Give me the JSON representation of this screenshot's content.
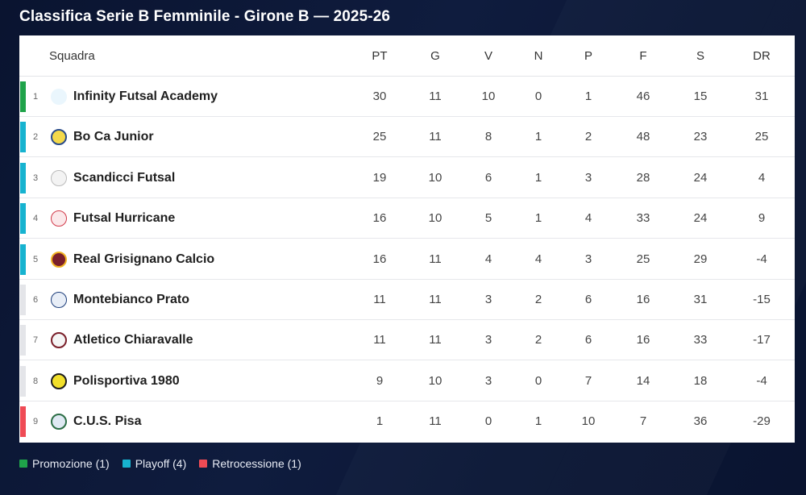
{
  "title": "Classifica Serie B Femminile - Girone B — 2025-26",
  "headers": {
    "team": "Squadra",
    "pt": "PT",
    "g": "G",
    "v": "V",
    "n": "N",
    "p": "P",
    "f": "F",
    "s": "S",
    "dr": "DR"
  },
  "colors": {
    "promozione": "#1fa34a",
    "playoff": "#17b3d0",
    "retrocessione": "#ef4b55",
    "none": "#e4e5e9"
  },
  "rows": [
    {
      "pos": "1",
      "team": "Infinity Futsal Academy",
      "logo_icon": "infinity-futsal-academy-logo-icon",
      "zone": "promozione",
      "pt": "30",
      "g": "11",
      "v": "10",
      "n": "0",
      "p": "1",
      "f": "46",
      "s": "15",
      "dr": "31"
    },
    {
      "pos": "2",
      "team": "Bo Ca Junior",
      "logo_icon": "bo-ca-junior-logo-icon",
      "zone": "playoff",
      "pt": "25",
      "g": "11",
      "v": "8",
      "n": "1",
      "p": "2",
      "f": "48",
      "s": "23",
      "dr": "25"
    },
    {
      "pos": "3",
      "team": "Scandicci Futsal",
      "logo_icon": "scandicci-futsal-logo-icon",
      "zone": "playoff",
      "pt": "19",
      "g": "10",
      "v": "6",
      "n": "1",
      "p": "3",
      "f": "28",
      "s": "24",
      "dr": "4"
    },
    {
      "pos": "4",
      "team": "Futsal Hurricane",
      "logo_icon": "futsal-hurricane-logo-icon",
      "zone": "playoff",
      "pt": "16",
      "g": "10",
      "v": "5",
      "n": "1",
      "p": "4",
      "f": "33",
      "s": "24",
      "dr": "9"
    },
    {
      "pos": "5",
      "team": "Real Grisignano Calcio",
      "logo_icon": "real-grisignano-calcio-logo-icon",
      "zone": "playoff",
      "pt": "16",
      "g": "11",
      "v": "4",
      "n": "4",
      "p": "3",
      "f": "25",
      "s": "29",
      "dr": "-4"
    },
    {
      "pos": "6",
      "team": "Montebianco Prato",
      "logo_icon": "montebianco-prato-logo-icon",
      "zone": "none",
      "pt": "11",
      "g": "11",
      "v": "3",
      "n": "2",
      "p": "6",
      "f": "16",
      "s": "31",
      "dr": "-15"
    },
    {
      "pos": "7",
      "team": "Atletico Chiaravalle",
      "logo_icon": "atletico-chiaravalle-logo-icon",
      "zone": "none",
      "pt": "11",
      "g": "11",
      "v": "3",
      "n": "2",
      "p": "6",
      "f": "16",
      "s": "33",
      "dr": "-17"
    },
    {
      "pos": "8",
      "team": "Polisportiva 1980",
      "logo_icon": "polisportiva-1980-logo-icon",
      "zone": "none",
      "pt": "9",
      "g": "10",
      "v": "3",
      "n": "0",
      "p": "7",
      "f": "14",
      "s": "18",
      "dr": "-4"
    },
    {
      "pos": "9",
      "team": "C.U.S. Pisa",
      "logo_icon": "cus-pisa-logo-icon",
      "zone": "retrocessione",
      "pt": "1",
      "g": "11",
      "v": "0",
      "n": "1",
      "p": "10",
      "f": "7",
      "s": "36",
      "dr": "-29"
    }
  ],
  "legend": [
    {
      "label": "Promozione (1)",
      "zone": "promozione"
    },
    {
      "label": "Playoff (4)",
      "zone": "playoff"
    },
    {
      "label": "Retrocessione (1)",
      "zone": "retrocessione"
    }
  ]
}
